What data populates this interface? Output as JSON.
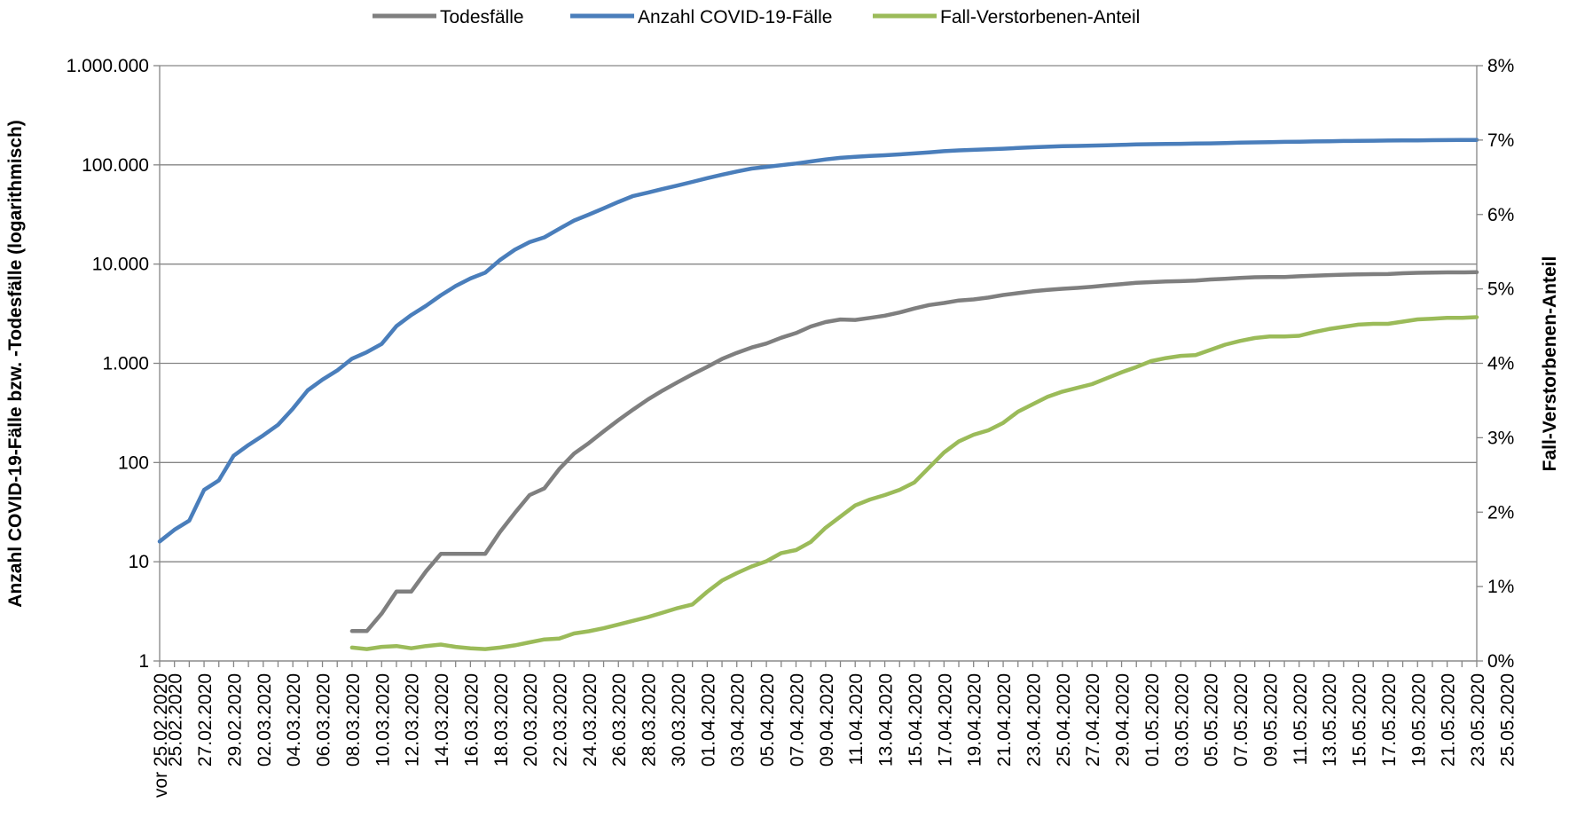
{
  "chart_data": {
    "type": "line",
    "legend": {
      "position": "top",
      "entries": [
        "Todesfälle",
        "Anzahl COVID-19-Fälle",
        "Fall-Verstorbenen-Anteil"
      ]
    },
    "y_left": {
      "label": "Anzahl COVID-19-Fälle bzw. -Todesfälle (logarithmisch)",
      "scale": "log",
      "range": [
        1,
        1000000
      ],
      "tick_values": [
        1,
        10,
        100,
        1000,
        10000,
        100000,
        1000000
      ],
      "tick_labels": [
        "1",
        "10",
        "100",
        "1.000",
        "10.000",
        "100.000",
        "1.000.000"
      ]
    },
    "y_right": {
      "label": "Fall-Verstorbenen-Anteil",
      "scale": "linear",
      "range": [
        0,
        8
      ],
      "unit": "%",
      "tick_values": [
        0,
        1,
        2,
        3,
        4,
        5,
        6,
        7,
        8
      ],
      "tick_labels": [
        "0%",
        "1%",
        "2%",
        "3%",
        "4%",
        "5%",
        "6%",
        "7%",
        "8%"
      ]
    },
    "grid": "horizontal",
    "x_tick_labels": [
      "vor 25.02.2020",
      "25.02.2020",
      "27.02.2020",
      "29.02.2020",
      "02.03.2020",
      "04.03.2020",
      "06.03.2020",
      "08.03.2020",
      "10.03.2020",
      "12.03.2020",
      "14.03.2020",
      "16.03.2020",
      "18.03.2020",
      "20.03.2020",
      "22.03.2020",
      "24.03.2020",
      "26.03.2020",
      "28.03.2020",
      "30.03.2020",
      "01.04.2020",
      "03.04.2020",
      "05.04.2020",
      "07.04.2020",
      "09.04.2020",
      "11.04.2020",
      "13.04.2020",
      "15.04.2020",
      "17.04.2020",
      "19.04.2020",
      "21.04.2020",
      "23.04.2020",
      "25.04.2020",
      "27.04.2020",
      "29.04.2020",
      "01.05.2020",
      "03.05.2020",
      "05.05.2020",
      "07.05.2020",
      "09.05.2020",
      "11.05.2020",
      "13.05.2020",
      "15.05.2020",
      "17.05.2020",
      "19.05.2020",
      "21.05.2020",
      "23.05.2020",
      "25.05.2020"
    ],
    "series": [
      {
        "name": "Anzahl COVID-19-Fälle",
        "axis": "left",
        "color": "#4a7ebb",
        "start_index": 0,
        "values": [
          16,
          21,
          26,
          53,
          66,
          117,
          150,
          188,
          240,
          349,
          534,
          684,
          847,
          1112,
          1296,
          1565,
          2369,
          3062,
          3795,
          4838,
          6012,
          7156,
          8198,
          10999,
          13957,
          16662,
          18610,
          22672,
          27436,
          31554,
          36508,
          42288,
          48582,
          52547,
          57298,
          61913,
          67366,
          73522,
          79696,
          85778,
          91714,
          95391,
          99225,
          103228,
          108202,
          113525,
          117658,
          120479,
          123016,
          125098,
          127584,
          130450,
          133830,
          137439,
          139897,
          141672,
          143457,
          145694,
          148046,
          150383,
          152438,
          154175,
          155193,
          156337,
          157641,
          159119,
          160758,
          161703,
          162496,
          163160,
          163860,
          164807,
          166091,
          167300,
          168551,
          169575,
          170508,
          171306,
          172239,
          173152,
          174098,
          174478,
          175061,
          175752,
          176369,
          176551,
          177212,
          177778,
          178281,
          178570
        ]
      },
      {
        "name": "Todesfälle",
        "axis": "left",
        "color": "#7f7f7f",
        "start_index": 13,
        "values": [
          2,
          2,
          3,
          5,
          5,
          8,
          12,
          12,
          12,
          12,
          20,
          31,
          47,
          55,
          86,
          123,
          157,
          206,
          267,
          342,
          433,
          533,
          645,
          775,
          920,
          1107,
          1275,
          1444,
          1584,
          1810,
          2016,
          2349,
          2607,
          2767,
          2736,
          2871,
          3022,
          3254,
          3569,
          3868,
          4052,
          4294,
          4404,
          4598,
          4879,
          5094,
          5321,
          5500,
          5640,
          5750,
          5913,
          6115,
          6288,
          6481,
          6575,
          6692,
          6736,
          6812,
          6993,
          7119,
          7266,
          7369,
          7395,
          7417,
          7533,
          7634,
          7738,
          7823,
          7881,
          7914,
          7935,
          8090,
          8174,
          8216,
          8247,
          8257,
          8283
        ]
      },
      {
        "name": "Fall-Verstorbenen-Anteil",
        "axis": "right",
        "unit": "%",
        "color": "#9bbb59",
        "start_index": 13,
        "values": [
          0.18,
          0.16,
          0.19,
          0.2,
          0.17,
          0.2,
          0.22,
          0.19,
          0.17,
          0.16,
          0.18,
          0.21,
          0.25,
          0.29,
          0.3,
          0.37,
          0.4,
          0.44,
          0.49,
          0.54,
          0.59,
          0.65,
          0.71,
          0.76,
          0.93,
          1.08,
          1.18,
          1.27,
          1.34,
          1.45,
          1.49,
          1.6,
          1.79,
          1.94,
          2.09,
          2.17,
          2.23,
          2.3,
          2.4,
          2.6,
          2.8,
          2.95,
          3.04,
          3.1,
          3.2,
          3.35,
          3.45,
          3.55,
          3.62,
          3.67,
          3.72,
          3.8,
          3.88,
          3.95,
          4.03,
          4.07,
          4.1,
          4.11,
          4.18,
          4.25,
          4.3,
          4.34,
          4.36,
          4.36,
          4.37,
          4.42,
          4.46,
          4.49,
          4.52,
          4.53,
          4.53,
          4.56,
          4.59,
          4.6,
          4.61,
          4.61,
          4.62
        ]
      }
    ]
  }
}
